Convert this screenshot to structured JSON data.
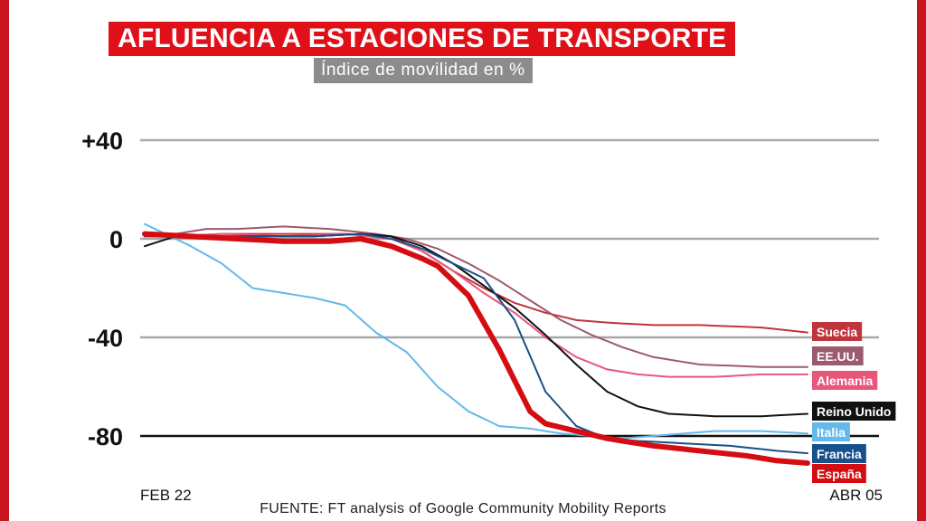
{
  "title": "AFLUENCIA A ESTACIONES DE TRANSPORTE",
  "subtitle": "Índice de movilidad en %",
  "source": "FUENTE: FT analysis of Google Community Mobility Reports",
  "colors": {
    "frame": "#c8141c",
    "title_bg": "#e01019",
    "subtitle_bg": "#8c8c8c"
  },
  "chart_data": {
    "type": "line",
    "title": "AFLUENCIA A ESTACIONES DE TRANSPORTE",
    "subtitle": "Índice de movilidad en %",
    "x_start": "FEB 22",
    "x_end": "ABR 05",
    "x": [
      0,
      1,
      2,
      3,
      4,
      5,
      6,
      7,
      8,
      9,
      10,
      11,
      12,
      13,
      14,
      15,
      16,
      17,
      18,
      19,
      20,
      21,
      22,
      23,
      24,
      25,
      26,
      27,
      28,
      29,
      30,
      31,
      32,
      33,
      34,
      35,
      36,
      37,
      38,
      39,
      40,
      41,
      42,
      43
    ],
    "x_tick_labels": [
      {
        "x": 0,
        "label": "FEB 22"
      },
      {
        "x": 43,
        "label": "ABR 05"
      }
    ],
    "y_ticks": [
      {
        "value": 40,
        "label": "+40"
      },
      {
        "value": 0,
        "label": "0"
      },
      {
        "value": -40,
        "label": "-40"
      },
      {
        "value": -80,
        "label": "-80"
      }
    ],
    "ylim": [
      -95,
      50
    ],
    "grid": true,
    "legend": "end-of-line labels",
    "series": [
      {
        "name": "Suecia",
        "color": "#c0343c",
        "width": 2,
        "anchors": [
          [
            0,
            1
          ],
          [
            2,
            1
          ],
          [
            5,
            2
          ],
          [
            9,
            2
          ],
          [
            13,
            2
          ],
          [
            16,
            1
          ],
          [
            18,
            -5
          ],
          [
            20,
            -13
          ],
          [
            22,
            -20
          ],
          [
            24,
            -26
          ],
          [
            26,
            -30
          ],
          [
            28,
            -33
          ],
          [
            30,
            -34
          ],
          [
            33,
            -35
          ],
          [
            36,
            -35
          ],
          [
            40,
            -36
          ],
          [
            43,
            -38
          ]
        ]
      },
      {
        "name": "EE.UU.",
        "color": "#9c5a6e",
        "width": 2,
        "anchors": [
          [
            0,
            1
          ],
          [
            2,
            2
          ],
          [
            4,
            4
          ],
          [
            6,
            4
          ],
          [
            9,
            5
          ],
          [
            12,
            4
          ],
          [
            15,
            2
          ],
          [
            17,
            0
          ],
          [
            19,
            -4
          ],
          [
            21,
            -10
          ],
          [
            23,
            -17
          ],
          [
            25,
            -25
          ],
          [
            27,
            -33
          ],
          [
            29,
            -39
          ],
          [
            31,
            -44
          ],
          [
            33,
            -48
          ],
          [
            36,
            -51
          ],
          [
            40,
            -52
          ],
          [
            43,
            -52
          ]
        ]
      },
      {
        "name": "Alemania",
        "color": "#e8567c",
        "width": 2,
        "anchors": [
          [
            0,
            1
          ],
          [
            2,
            1
          ],
          [
            5,
            2
          ],
          [
            9,
            1
          ],
          [
            13,
            2
          ],
          [
            16,
            0
          ],
          [
            18,
            -5
          ],
          [
            20,
            -13
          ],
          [
            22,
            -22
          ],
          [
            24,
            -30
          ],
          [
            26,
            -40
          ],
          [
            28,
            -48
          ],
          [
            30,
            -53
          ],
          [
            32,
            -55
          ],
          [
            34,
            -56
          ],
          [
            37,
            -56
          ],
          [
            40,
            -55
          ],
          [
            43,
            -55
          ]
        ]
      },
      {
        "name": "Reino Unido",
        "color": "#111111",
        "width": 2,
        "anchors": [
          [
            0,
            -3
          ],
          [
            2,
            1
          ],
          [
            5,
            1
          ],
          [
            8,
            1
          ],
          [
            11,
            1
          ],
          [
            14,
            2
          ],
          [
            16,
            1
          ],
          [
            18,
            -3
          ],
          [
            20,
            -10
          ],
          [
            22,
            -19
          ],
          [
            24,
            -28
          ],
          [
            26,
            -39
          ],
          [
            28,
            -51
          ],
          [
            30,
            -62
          ],
          [
            32,
            -68
          ],
          [
            34,
            -71
          ],
          [
            37,
            -72
          ],
          [
            40,
            -72
          ],
          [
            43,
            -71
          ]
        ]
      },
      {
        "name": "Italia",
        "color": "#63b8ec",
        "width": 2,
        "anchors": [
          [
            0,
            6
          ],
          [
            1,
            3
          ],
          [
            3,
            -3
          ],
          [
            5,
            -10
          ],
          [
            7,
            -20
          ],
          [
            9,
            -22
          ],
          [
            11,
            -24
          ],
          [
            13,
            -27
          ],
          [
            15,
            -38
          ],
          [
            17,
            -46
          ],
          [
            19,
            -60
          ],
          [
            21,
            -70
          ],
          [
            23,
            -76
          ],
          [
            25,
            -77
          ],
          [
            27,
            -79
          ],
          [
            29,
            -80
          ],
          [
            31,
            -81
          ],
          [
            33,
            -80
          ],
          [
            35,
            -79
          ],
          [
            37,
            -78
          ],
          [
            40,
            -78
          ],
          [
            43,
            -79
          ]
        ]
      },
      {
        "name": "Francia",
        "color": "#17508a",
        "width": 2,
        "anchors": [
          [
            0,
            1
          ],
          [
            2,
            2
          ],
          [
            5,
            1
          ],
          [
            8,
            1
          ],
          [
            11,
            1
          ],
          [
            14,
            2
          ],
          [
            16,
            0
          ],
          [
            18,
            -4
          ],
          [
            20,
            -10
          ],
          [
            22,
            -16
          ],
          [
            24,
            -33
          ],
          [
            26,
            -62
          ],
          [
            28,
            -76
          ],
          [
            30,
            -81
          ],
          [
            32,
            -82
          ],
          [
            35,
            -83
          ],
          [
            38,
            -84
          ],
          [
            41,
            -86
          ],
          [
            43,
            -87
          ]
        ]
      },
      {
        "name": "España",
        "color": "#d40d12",
        "width": 6,
        "anchors": [
          [
            0,
            2
          ],
          [
            3,
            1
          ],
          [
            6,
            0
          ],
          [
            9,
            -1
          ],
          [
            12,
            -1
          ],
          [
            14,
            0
          ],
          [
            16,
            -3
          ],
          [
            18,
            -8
          ],
          [
            19,
            -11
          ],
          [
            21,
            -23
          ],
          [
            23,
            -45
          ],
          [
            25,
            -70
          ],
          [
            26,
            -75
          ],
          [
            28,
            -78
          ],
          [
            30,
            -81
          ],
          [
            33,
            -84
          ],
          [
            36,
            -86
          ],
          [
            39,
            -88
          ],
          [
            41,
            -90
          ],
          [
            43,
            -91
          ]
        ]
      }
    ]
  }
}
